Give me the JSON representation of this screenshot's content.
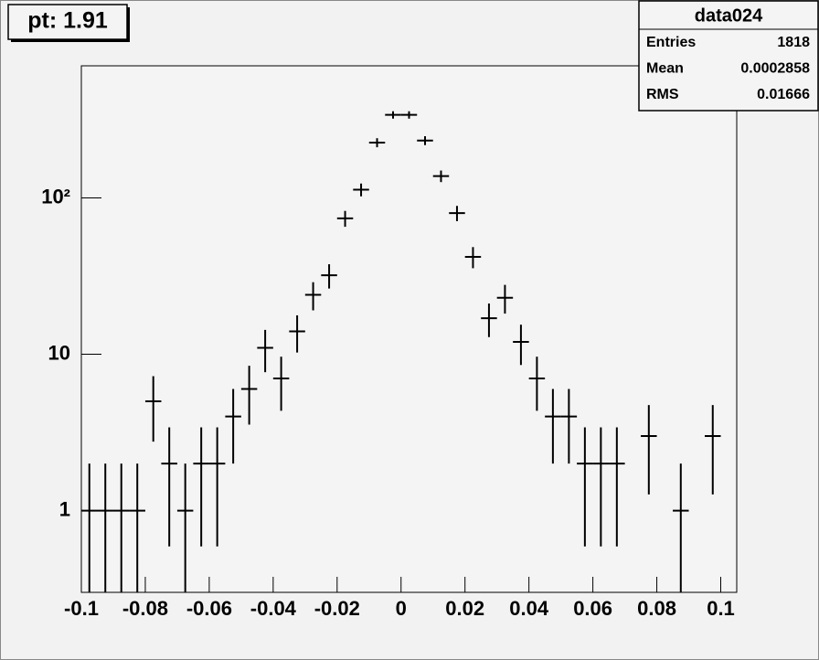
{
  "chart_data": {
    "type": "errorbar",
    "title": "pt: 1.91",
    "stats": {
      "name": "data024",
      "rows": [
        {
          "label": "Entries",
          "value": 1818
        },
        {
          "label": "Mean",
          "value": 0.0002858
        },
        {
          "label": "RMS",
          "value": 0.01666
        }
      ]
    },
    "x": [
      -0.0975,
      -0.0925,
      -0.0875,
      -0.0825,
      -0.0775,
      -0.0725,
      -0.0675,
      -0.0625,
      -0.0575,
      -0.0525,
      -0.0475,
      -0.0425,
      -0.0375,
      -0.0325,
      -0.0275,
      -0.0225,
      -0.0175,
      -0.0125,
      -0.0075,
      -0.0025,
      0.0025,
      0.0075,
      0.0125,
      0.0175,
      0.0225,
      0.0275,
      0.0325,
      0.0375,
      0.0425,
      0.0475,
      0.0525,
      0.0575,
      0.0625,
      0.0675,
      0.0725,
      0.0775,
      0.0825,
      0.0875,
      0.0925,
      0.0975,
      0.1025
    ],
    "series": [
      {
        "color": "#000000",
        "values": [
          1,
          1,
          1,
          1,
          5,
          2,
          1,
          2,
          2,
          4,
          6,
          11,
          7,
          14,
          24,
          32,
          74,
          113,
          226,
          340,
          340,
          233,
          138,
          80,
          42,
          17,
          23,
          12,
          7,
          4,
          4,
          2,
          2,
          2,
          null,
          3,
          null,
          1,
          null,
          3,
          null
        ],
        "errors": [
          1,
          1,
          1,
          1,
          2.24,
          1.41,
          1,
          1.41,
          1.41,
          2,
          2.45,
          3.32,
          2.65,
          3.74,
          4.9,
          5.66,
          8.6,
          10.63,
          15.03,
          18.44,
          18.44,
          15.26,
          11.75,
          8.94,
          6.48,
          4.12,
          4.8,
          3.46,
          2.65,
          2,
          2,
          1.41,
          1.41,
          1.41,
          null,
          1.73,
          null,
          1,
          null,
          1.73,
          null
        ]
      }
    ],
    "xlim": [
      -0.1,
      0.105
    ],
    "xticks": [
      -0.1,
      -0.08,
      -0.06,
      -0.04,
      -0.02,
      0,
      0.02,
      0.04,
      0.06,
      0.08,
      0.1
    ],
    "ylim": [
      0.3,
      700
    ],
    "yticks": [
      1,
      10,
      {
        "value": 100,
        "label": "10²"
      }
    ],
    "log_y": true
  }
}
